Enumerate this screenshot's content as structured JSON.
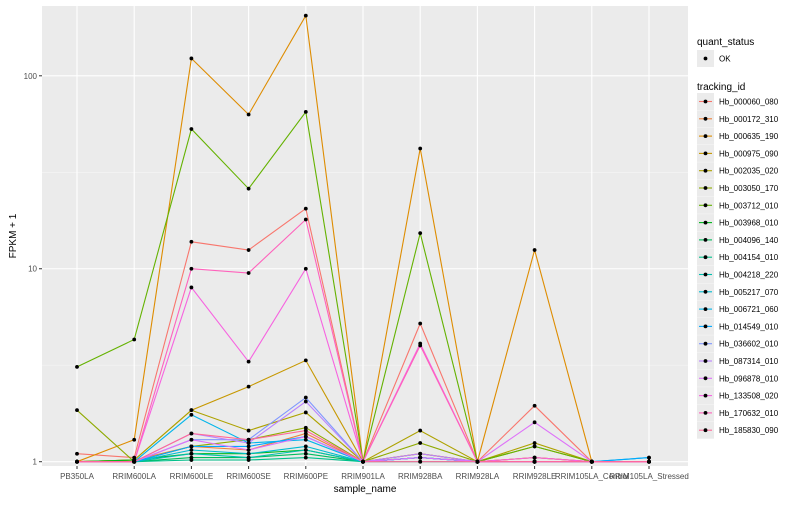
{
  "chart_data": {
    "type": "line",
    "title": "",
    "xlabel": "sample_name",
    "ylabel": "FPKM + 1",
    "y_scale": "log10",
    "ylim": [
      0.95,
      230
    ],
    "y_ticks": [
      1,
      10,
      100
    ],
    "y_tick_labels": [
      "1",
      "10",
      "100"
    ],
    "grid": true,
    "categories": [
      "PB350LA",
      "RRIM600LA",
      "RRIM600LE",
      "RRIM600SE",
      "RRIM600PE",
      "RRIM901LA",
      "RRIM928BA",
      "RRIM928LA",
      "RRIM928LE",
      "RRIM105LA_Control",
      "RRIM105LA_Stressed"
    ],
    "legend": {
      "position": "right",
      "status_title": "quant_status",
      "status_label": "OK",
      "series_title": "tracking_id"
    },
    "series": [
      {
        "name": "Hb_000060_080",
        "color": "#F8766D",
        "values": [
          1.1,
          1.05,
          13.8,
          12.5,
          20.5,
          1.0,
          5.2,
          1.0,
          1.95,
          1.0,
          1.0
        ]
      },
      {
        "name": "Hb_000172_310",
        "color": "#EC823C",
        "values": [
          1.0,
          1.02,
          1.2,
          1.15,
          1.4,
          1.0,
          1.1,
          1.0,
          1.05,
          1.0,
          1.0
        ]
      },
      {
        "name": "Hb_000635_190",
        "color": "#DE8C00",
        "values": [
          1.0,
          1.3,
          123,
          63,
          205,
          1.0,
          42,
          1.0,
          12.5,
          1.0,
          1.0
        ]
      },
      {
        "name": "Hb_000975_090",
        "color": "#C79800",
        "values": [
          1.0,
          1.02,
          1.85,
          2.45,
          3.35,
          1.0,
          1.1,
          1.0,
          1.05,
          1.0,
          1.0
        ]
      },
      {
        "name": "Hb_002035_020",
        "color": "#AEA200",
        "values": [
          1.0,
          1.02,
          1.85,
          1.45,
          1.8,
          1.0,
          1.45,
          1.0,
          1.25,
          1.0,
          1.0
        ]
      },
      {
        "name": "Hb_003050_170",
        "color": "#8FAA00",
        "values": [
          1.85,
          1.0,
          1.2,
          1.3,
          1.5,
          1.0,
          1.25,
          1.0,
          1.2,
          1.0,
          1.0
        ]
      },
      {
        "name": "Hb_003712_010",
        "color": "#64B200",
        "values": [
          3.1,
          4.3,
          53,
          26,
          65,
          1.0,
          15.3,
          1.0,
          1.2,
          1.0,
          1.0
        ]
      },
      {
        "name": "Hb_003968_010",
        "color": "#00B81B",
        "values": [
          1.0,
          1.02,
          1.1,
          1.1,
          1.15,
          1.0,
          1.05,
          1.0,
          1.0,
          1.0,
          1.0
        ]
      },
      {
        "name": "Hb_004096_140",
        "color": "#00BD5C",
        "values": [
          1.0,
          1.0,
          1.05,
          1.05,
          1.1,
          1.0,
          1.05,
          1.0,
          1.0,
          1.0,
          1.0
        ]
      },
      {
        "name": "Hb_004154_010",
        "color": "#00C08B",
        "values": [
          1.0,
          1.0,
          1.02,
          1.02,
          1.05,
          1.0,
          1.0,
          1.0,
          1.0,
          1.0,
          1.0
        ]
      },
      {
        "name": "Hb_004218_220",
        "color": "#00BFB0",
        "values": [
          1.0,
          1.0,
          1.1,
          1.05,
          1.15,
          1.0,
          1.05,
          1.0,
          1.0,
          1.0,
          1.0
        ]
      },
      {
        "name": "Hb_005217_070",
        "color": "#00BCD0",
        "values": [
          1.0,
          1.0,
          1.15,
          1.1,
          1.2,
          1.0,
          1.05,
          1.0,
          1.0,
          1.0,
          1.05
        ]
      },
      {
        "name": "Hb_006721_060",
        "color": "#00B5EA",
        "values": [
          1.0,
          1.0,
          1.75,
          1.25,
          1.3,
          1.0,
          1.05,
          1.0,
          1.0,
          1.0,
          1.0
        ]
      },
      {
        "name": "Hb_014549_010",
        "color": "#00A9FF",
        "values": [
          1.0,
          1.0,
          1.2,
          1.2,
          1.35,
          1.0,
          1.05,
          1.0,
          1.0,
          1.0,
          1.05
        ]
      },
      {
        "name": "Hb_036602_010",
        "color": "#7F96FF",
        "values": [
          1.0,
          1.0,
          1.3,
          1.3,
          2.15,
          1.0,
          1.05,
          1.0,
          1.0,
          1.0,
          1.0
        ]
      },
      {
        "name": "Hb_087314_010",
        "color": "#B983FF",
        "values": [
          1.0,
          1.0,
          1.4,
          1.25,
          2.05,
          1.0,
          1.1,
          1.0,
          1.0,
          1.0,
          1.0
        ]
      },
      {
        "name": "Hb_096878_010",
        "color": "#DE71F9",
        "values": [
          1.0,
          1.0,
          1.3,
          1.15,
          1.35,
          1.0,
          1.05,
          1.0,
          1.6,
          1.0,
          1.0
        ]
      },
      {
        "name": "Hb_133508_020",
        "color": "#F763E0",
        "values": [
          1.0,
          1.0,
          8.0,
          3.3,
          10.0,
          1.0,
          4.1,
          1.0,
          1.05,
          1.0,
          1.0
        ]
      },
      {
        "name": "Hb_170632_010",
        "color": "#FF62BC",
        "values": [
          1.0,
          1.0,
          10.0,
          9.5,
          18.0,
          1.0,
          4.0,
          1.0,
          1.0,
          1.0,
          1.0
        ]
      },
      {
        "name": "Hb_185830_090",
        "color": "#FF6A98",
        "values": [
          1.0,
          1.0,
          1.4,
          1.3,
          1.45,
          1.0,
          1.0,
          1.0,
          1.0,
          1.0,
          1.0
        ]
      }
    ]
  }
}
